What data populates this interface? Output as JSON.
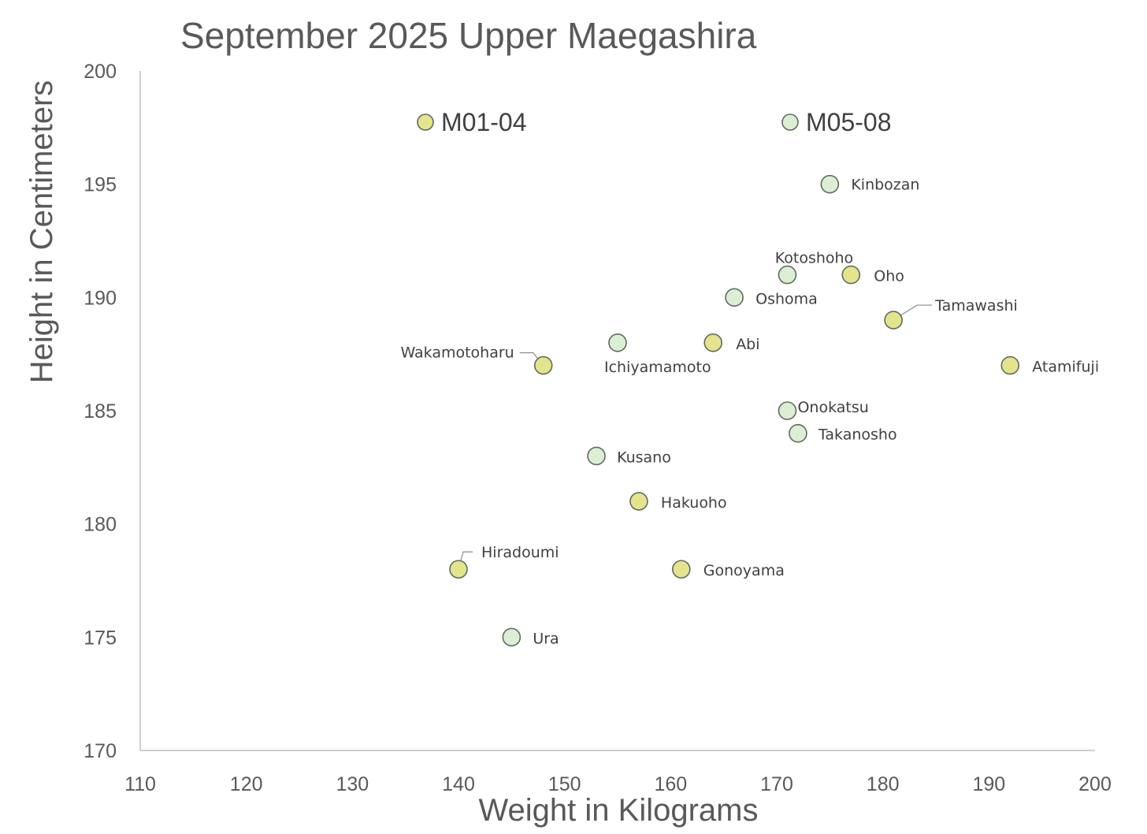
{
  "chart_data": {
    "type": "scatter",
    "title": "September 2025 Upper Maegashira",
    "xlabel": "Weight in Kilograms",
    "ylabel": "Height in Centimeters",
    "xlim": [
      110,
      200
    ],
    "ylim": [
      170,
      200
    ],
    "x_ticks": [
      "110",
      "120",
      "130",
      "140",
      "150",
      "160",
      "170",
      "180",
      "190",
      "200"
    ],
    "y_ticks": [
      "170",
      "175",
      "180",
      "185",
      "190",
      "195",
      "200"
    ],
    "grid": false,
    "legend_placement": "top",
    "series": [
      {
        "name": "M01-04",
        "color": "#e4e48c",
        "points": [
          {
            "label": "Oho",
            "x": 177,
            "y": 191
          },
          {
            "label": "Tamawashi",
            "x": 181,
            "y": 189
          },
          {
            "label": "Abi",
            "x": 164,
            "y": 188
          },
          {
            "label": "Wakamotoharu",
            "x": 148,
            "y": 187
          },
          {
            "label": "Atamifuji",
            "x": 192,
            "y": 187
          },
          {
            "label": "Hakuoho",
            "x": 157,
            "y": 181
          },
          {
            "label": "Hiradoumi",
            "x": 140,
            "y": 178
          },
          {
            "label": "Gonoyama",
            "x": 161,
            "y": 178
          }
        ]
      },
      {
        "name": "M05-08",
        "color": "#dcefd4",
        "points": [
          {
            "label": "Kinbozan",
            "x": 175,
            "y": 195
          },
          {
            "label": "Kotoshoho",
            "x": 171,
            "y": 191
          },
          {
            "label": "Oshoma",
            "x": 166,
            "y": 190
          },
          {
            "label": "Ichiyamamoto",
            "x": 155,
            "y": 188
          },
          {
            "label": "Onokatsu",
            "x": 171,
            "y": 185
          },
          {
            "label": "Takanosho",
            "x": 172,
            "y": 184
          },
          {
            "label": "Kusano",
            "x": 153,
            "y": 183
          },
          {
            "label": "Ura",
            "x": 145,
            "y": 175
          }
        ]
      }
    ]
  }
}
